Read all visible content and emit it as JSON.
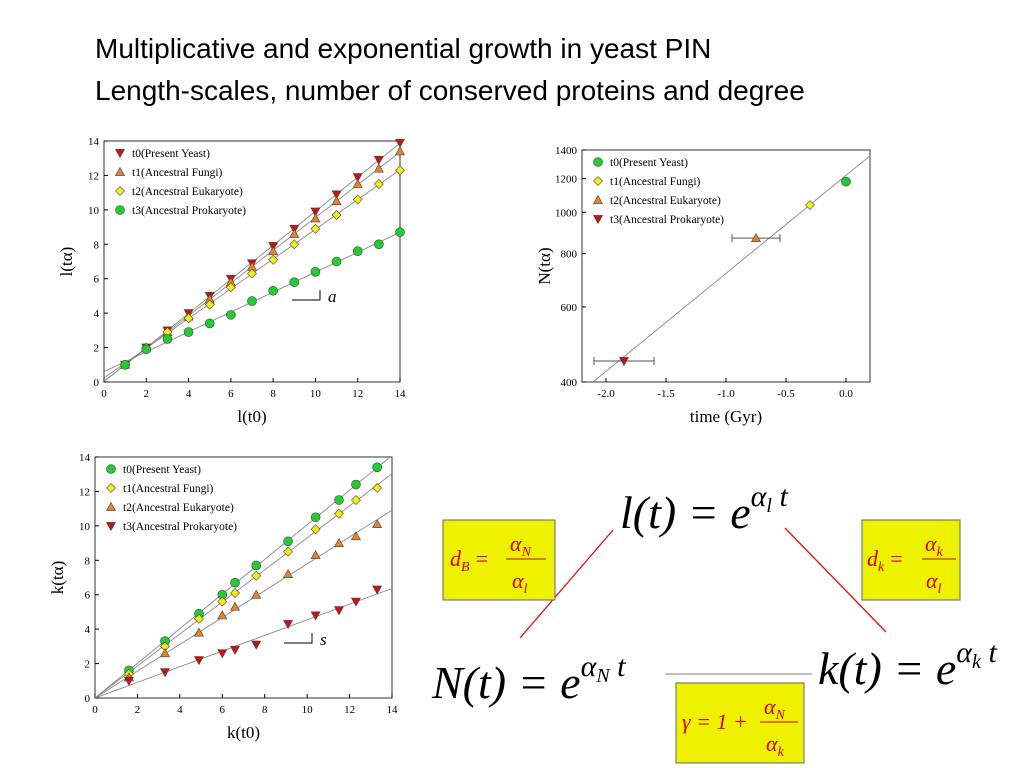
{
  "title": [
    "Multiplicative and exponential growth in yeast PIN",
    "Length-scales, number of conserved proteins and degree"
  ],
  "chart_data": [
    {
      "type": "scatter",
      "xlabel": "l(t0)",
      "ylabel": "l(tα)",
      "annotation": "a",
      "x": [
        1,
        2,
        3,
        4,
        5,
        6,
        7,
        8,
        9,
        10,
        11,
        12,
        13,
        14
      ],
      "xlim": [
        0,
        14
      ],
      "ylim": [
        0,
        14
      ],
      "xticks": [
        0,
        2,
        4,
        6,
        8,
        10,
        12,
        14
      ],
      "yticks": [
        0,
        2,
        4,
        6,
        8,
        10,
        12,
        14
      ],
      "log_y": false,
      "fit": "linear",
      "legend": "upper left",
      "series": [
        {
          "name": "t0(Present Yeast)",
          "color": "#cc1111",
          "marker": "triangle-down",
          "values": [
            1,
            2,
            3,
            4,
            5,
            6,
            6.9,
            7.9,
            8.9,
            9.9,
            10.9,
            11.9,
            12.9,
            13.9
          ]
        },
        {
          "name": "t1(Ancestral Fungi)",
          "color": "#e8822a",
          "marker": "triangle-up",
          "values": [
            1,
            2,
            2.9,
            3.8,
            4.8,
            5.8,
            6.7,
            7.6,
            8.6,
            9.5,
            10.5,
            11.5,
            12.4,
            13.4
          ]
        },
        {
          "name": "t2(Ancestral Eukaryote)",
          "color": "#f2ee10",
          "marker": "diamond",
          "values": [
            1,
            2,
            2.9,
            3.7,
            4.5,
            5.5,
            6.3,
            7.1,
            8.0,
            8.9,
            9.7,
            10.6,
            11.5,
            12.3
          ]
        },
        {
          "name": "t3(Ancestral Prokaryote)",
          "color": "#22cc33",
          "marker": "circle",
          "values": [
            1,
            1.9,
            2.5,
            2.9,
            3.4,
            3.9,
            4.7,
            5.3,
            5.8,
            6.4,
            7.0,
            7.6,
            8.0,
            8.7
          ]
        }
      ]
    },
    {
      "type": "scatter",
      "xlabel": "time (Gyr)",
      "ylabel": "N(tα)",
      "xlim": [
        -2.2,
        0.2
      ],
      "ylim": [
        400,
        1400
      ],
      "xticks": [
        {
          "value": -2,
          "label": "-2.0"
        },
        {
          "value": -1.5,
          "label": "-1.5"
        },
        {
          "value": -1,
          "label": "-1.0"
        },
        {
          "value": -0.5,
          "label": "-0.5"
        },
        {
          "value": 0,
          "label": "0.0"
        }
      ],
      "yticks": [
        400,
        600,
        800,
        1000,
        1200,
        1400
      ],
      "log_y": true,
      "fit": "linear",
      "legend": "upper left",
      "series": [
        {
          "name": "t0(Present Yeast)",
          "color": "#22cc33",
          "marker": "circle",
          "x": [
            0
          ],
          "values": [
            1180
          ]
        },
        {
          "name": "t1(Ancestral Fungi)",
          "color": "#f2ee10",
          "marker": "diamond",
          "x": [
            -0.3
          ],
          "values": [
            1040
          ]
        },
        {
          "name": "t2(Ancestral Eukaryote)",
          "color": "#e8822a",
          "marker": "triangle-up",
          "x": [
            -0.75
          ],
          "values": [
            870
          ],
          "xerr": [
            0.2
          ]
        },
        {
          "name": "t3(Ancestral Prokaryote)",
          "color": "#cc1111",
          "marker": "triangle-down",
          "x": [
            -1.85
          ],
          "values": [
            448
          ],
          "xerr": [
            0.25
          ]
        }
      ]
    },
    {
      "type": "scatter",
      "xlabel": "k(t0)",
      "ylabel": "k(tα)",
      "annotation": "s",
      "x": [
        1.6,
        3.3,
        4.9,
        6.0,
        6.6,
        7.6,
        9.1,
        10.4,
        11.5,
        12.3,
        13.3
      ],
      "xlim": [
        0,
        14
      ],
      "ylim": [
        0,
        14
      ],
      "xticks": [
        0,
        2,
        4,
        6,
        8,
        10,
        12,
        14
      ],
      "yticks": [
        0,
        2,
        4,
        6,
        8,
        10,
        12,
        14
      ],
      "log_y": false,
      "fit": "origin",
      "legend": "upper left",
      "series": [
        {
          "name": "t0(Present Yeast)",
          "color": "#22cc33",
          "marker": "circle",
          "values": [
            1.6,
            3.3,
            4.9,
            6.0,
            6.7,
            7.7,
            9.1,
            10.5,
            11.5,
            12.4,
            13.4
          ]
        },
        {
          "name": "t1(Ancestral Fungi)",
          "color": "#f2ee10",
          "marker": "diamond",
          "values": [
            1.4,
            3.0,
            4.6,
            5.6,
            6.1,
            7.1,
            8.5,
            9.8,
            10.7,
            11.5,
            12.2
          ]
        },
        {
          "name": "t2(Ancestral Eukaryote)",
          "color": "#e8822a",
          "marker": "triangle-up",
          "values": [
            1.2,
            2.6,
            3.8,
            4.8,
            5.3,
            6.0,
            7.2,
            8.3,
            9.0,
            9.4,
            10.1
          ]
        },
        {
          "name": "t3(Ancestral Prokaryote)",
          "color": "#cc1111",
          "marker": "triangle-down",
          "values": [
            1.0,
            1.5,
            2.2,
            2.6,
            2.8,
            3.1,
            4.3,
            4.8,
            5.1,
            5.6,
            6.3
          ]
        }
      ]
    }
  ],
  "equations": {
    "l": {
      "text": "l(t) = e",
      "exp": "α",
      "exp_sub": "l",
      "exp_tail": " t"
    },
    "N": {
      "text": "N(t) = e",
      "exp": "α",
      "exp_sub": "N",
      "exp_tail": " t"
    },
    "k": {
      "text": "k(t) = e",
      "exp": "α",
      "exp_sub": "k",
      "exp_tail": " t"
    },
    "dB": {
      "lhs": "d",
      "lhs_sub": "B",
      "eq": "=",
      "num": "α",
      "num_sub": "N",
      "den": "α",
      "den_sub": "l"
    },
    "dk": {
      "lhs": "d",
      "lhs_sub": "k",
      "eq": "=",
      "num": "α",
      "num_sub": "k",
      "den": "α",
      "den_sub": "l"
    },
    "gamma": {
      "lhs": "γ = 1 +",
      "num": "α",
      "num_sub": "N",
      "den": "α",
      "den_sub": "k"
    }
  }
}
